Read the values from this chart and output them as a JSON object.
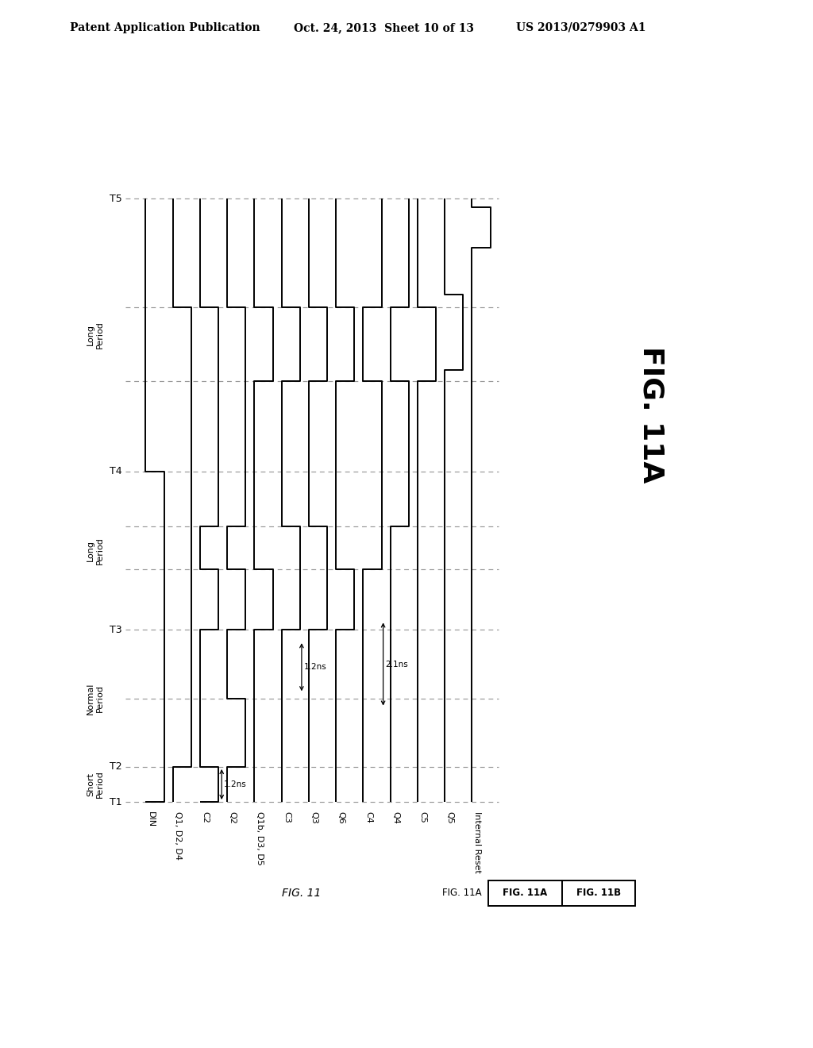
{
  "header_left": "Patent Application Publication",
  "header_mid": "Oct. 24, 2013  Sheet 10 of 13",
  "header_right": "US 2013/0279903 A1",
  "signals": [
    "DIN",
    "Q1, D2, D4",
    "C2",
    "Q2",
    "Q1b, D3, D5",
    "C3",
    "Q3",
    "Q6",
    "C4",
    "Q4",
    "C5",
    "Q5",
    "Internal Reset"
  ],
  "t_labels": [
    "T1",
    "T2",
    "T3",
    "T4",
    "T5"
  ],
  "period_labels": [
    "Short\nPeriod",
    "Normal\nPeriod",
    "Long\nPeriod",
    "Long\nPeriod"
  ],
  "fig_11_label": "FIG. 11",
  "fig_11a_bold": "FIG. 11A",
  "fig_11a_box": "FIG. 11A",
  "fig_11b_box": "FIG. 11B",
  "ann_1": "1.2ns",
  "ann_2": "1.2ns",
  "ann_3": "2.1ns",
  "background_color": "#ffffff",
  "line_color": "#000000",
  "dash_color": "#999999"
}
